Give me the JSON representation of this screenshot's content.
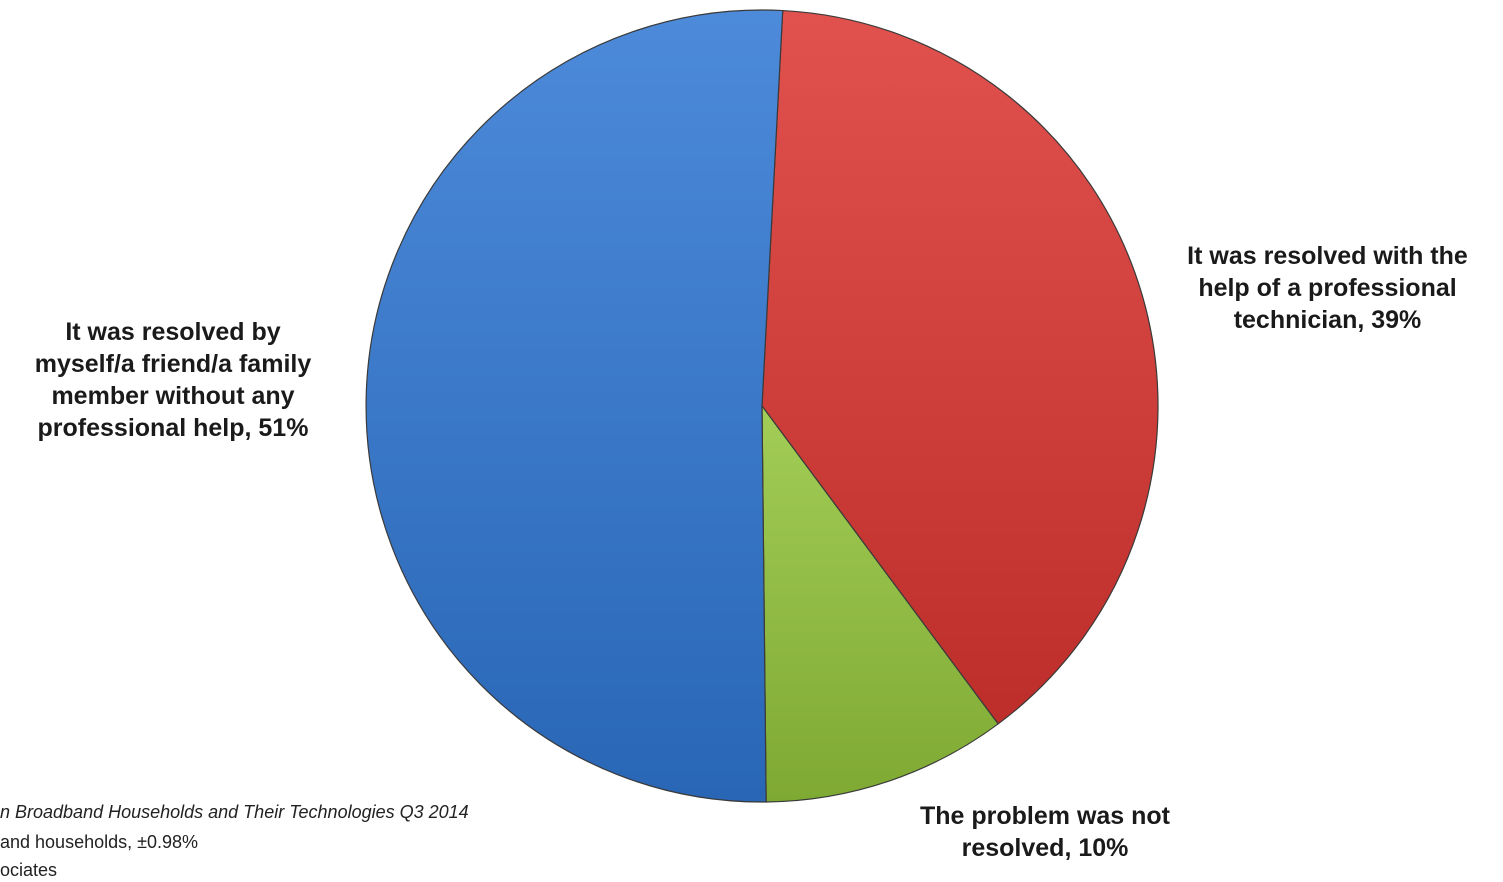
{
  "chart_data": {
    "type": "pie",
    "title": "",
    "slices": [
      {
        "label": "It was resolved with the help of a professional technician, 39%",
        "value": 39,
        "color": "#d3433f"
      },
      {
        "label": "The problem was not resolved, 10%",
        "value": 10,
        "color": "#94bf48"
      },
      {
        "label": "It was resolved by myself/a friend/a family member without any professional help, 51%",
        "value": 51,
        "color": "#3f7ccc"
      }
    ],
    "legend": "none",
    "data_labels": "outside"
  },
  "labels": {
    "slice_0": "It was resolved with the\nhelp of a professional\ntechnician, 39%",
    "slice_1": "The problem was not\nresolved, 10%",
    "slice_2": "It was resolved by\nmyself/a friend/a family\nmember without any\nprofessional help, 51%"
  },
  "source_notes": {
    "line_1": "n Broadband Households and Their Technologies Q3 2014",
    "line_2": "and households, ±0.98%",
    "line_3": "ociates"
  }
}
